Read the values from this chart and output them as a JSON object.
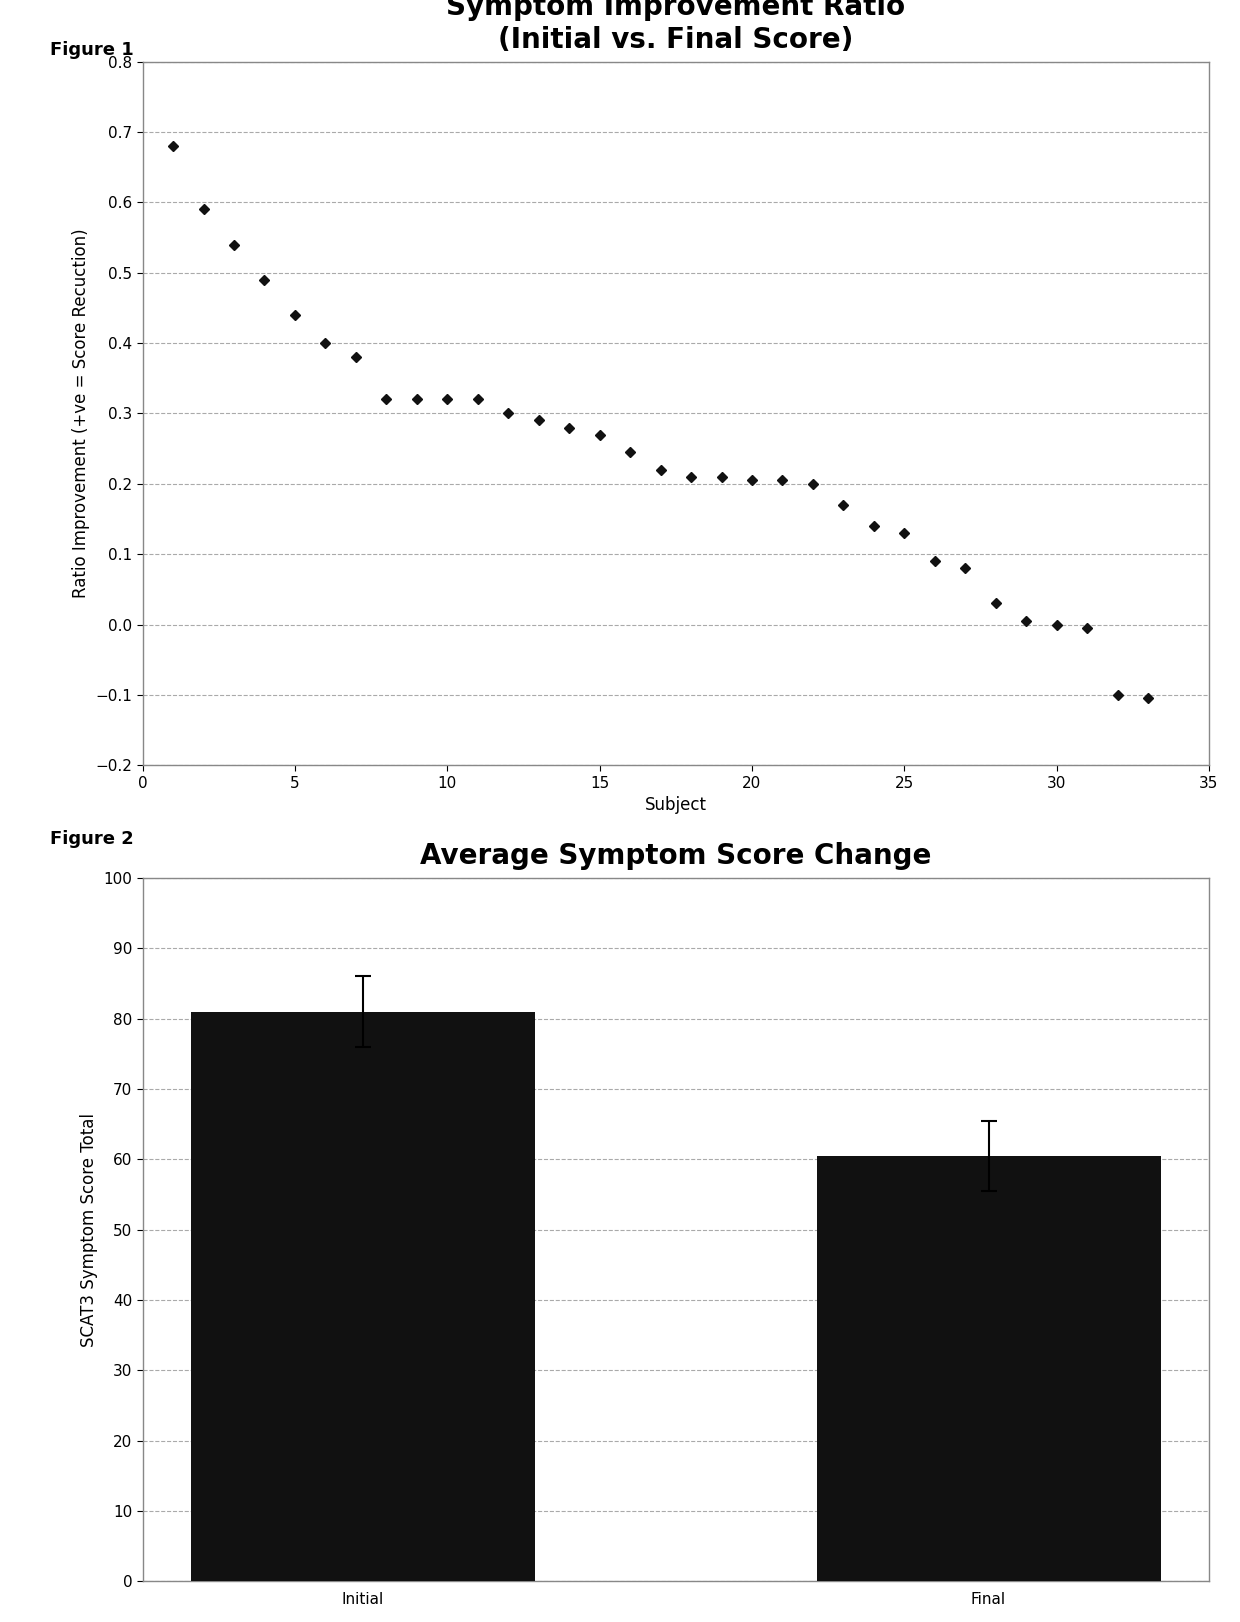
{
  "fig1": {
    "title": "Symptom Improvement Ratio\n(Initial vs. Final Score)",
    "xlabel": "Subject",
    "ylabel": "Ratio Improvement (+ve = Score Recuction)",
    "xlim": [
      0,
      35
    ],
    "ylim": [
      -0.2,
      0.8
    ],
    "yticks": [
      -0.2,
      -0.1,
      0.0,
      0.1,
      0.2,
      0.3,
      0.4,
      0.5,
      0.6,
      0.7,
      0.8
    ],
    "xticks": [
      0,
      5,
      10,
      15,
      20,
      25,
      30,
      35
    ],
    "x_values": [
      1,
      2,
      3,
      4,
      5,
      6,
      7,
      8,
      9,
      10,
      11,
      12,
      13,
      14,
      15,
      16,
      17,
      18,
      19,
      20,
      21,
      22,
      23,
      24,
      25,
      26,
      27,
      28,
      29,
      30,
      31,
      32,
      33
    ],
    "y_values": [
      0.68,
      0.59,
      0.54,
      0.49,
      0.44,
      0.4,
      0.38,
      0.32,
      0.32,
      0.32,
      0.32,
      0.3,
      0.29,
      0.28,
      0.27,
      0.245,
      0.22,
      0.21,
      0.21,
      0.205,
      0.205,
      0.2,
      0.17,
      0.14,
      0.13,
      0.09,
      0.08,
      0.03,
      0.005,
      0.0,
      -0.005,
      -0.1,
      -0.105
    ]
  },
  "fig2": {
    "title": "Average Symptom Score Change",
    "xlabel": "",
    "ylabel": "SCAT3 Symptom Score Total",
    "categories": [
      "Initial",
      "Final"
    ],
    "values": [
      81,
      60.5
    ],
    "errors": [
      5,
      5
    ],
    "bar_color": "#111111",
    "ylim": [
      0,
      100
    ],
    "yticks": [
      0,
      10,
      20,
      30,
      40,
      50,
      60,
      70,
      80,
      90,
      100
    ]
  },
  "background_color": "#ffffff",
  "figure_label_fontsize": 13,
  "fig1_title_fontsize": 20,
  "fig2_title_fontsize": 20,
  "axis_label_fontsize": 12,
  "tick_fontsize": 11,
  "marker": "D",
  "marker_size": 5,
  "marker_color": "#111111"
}
